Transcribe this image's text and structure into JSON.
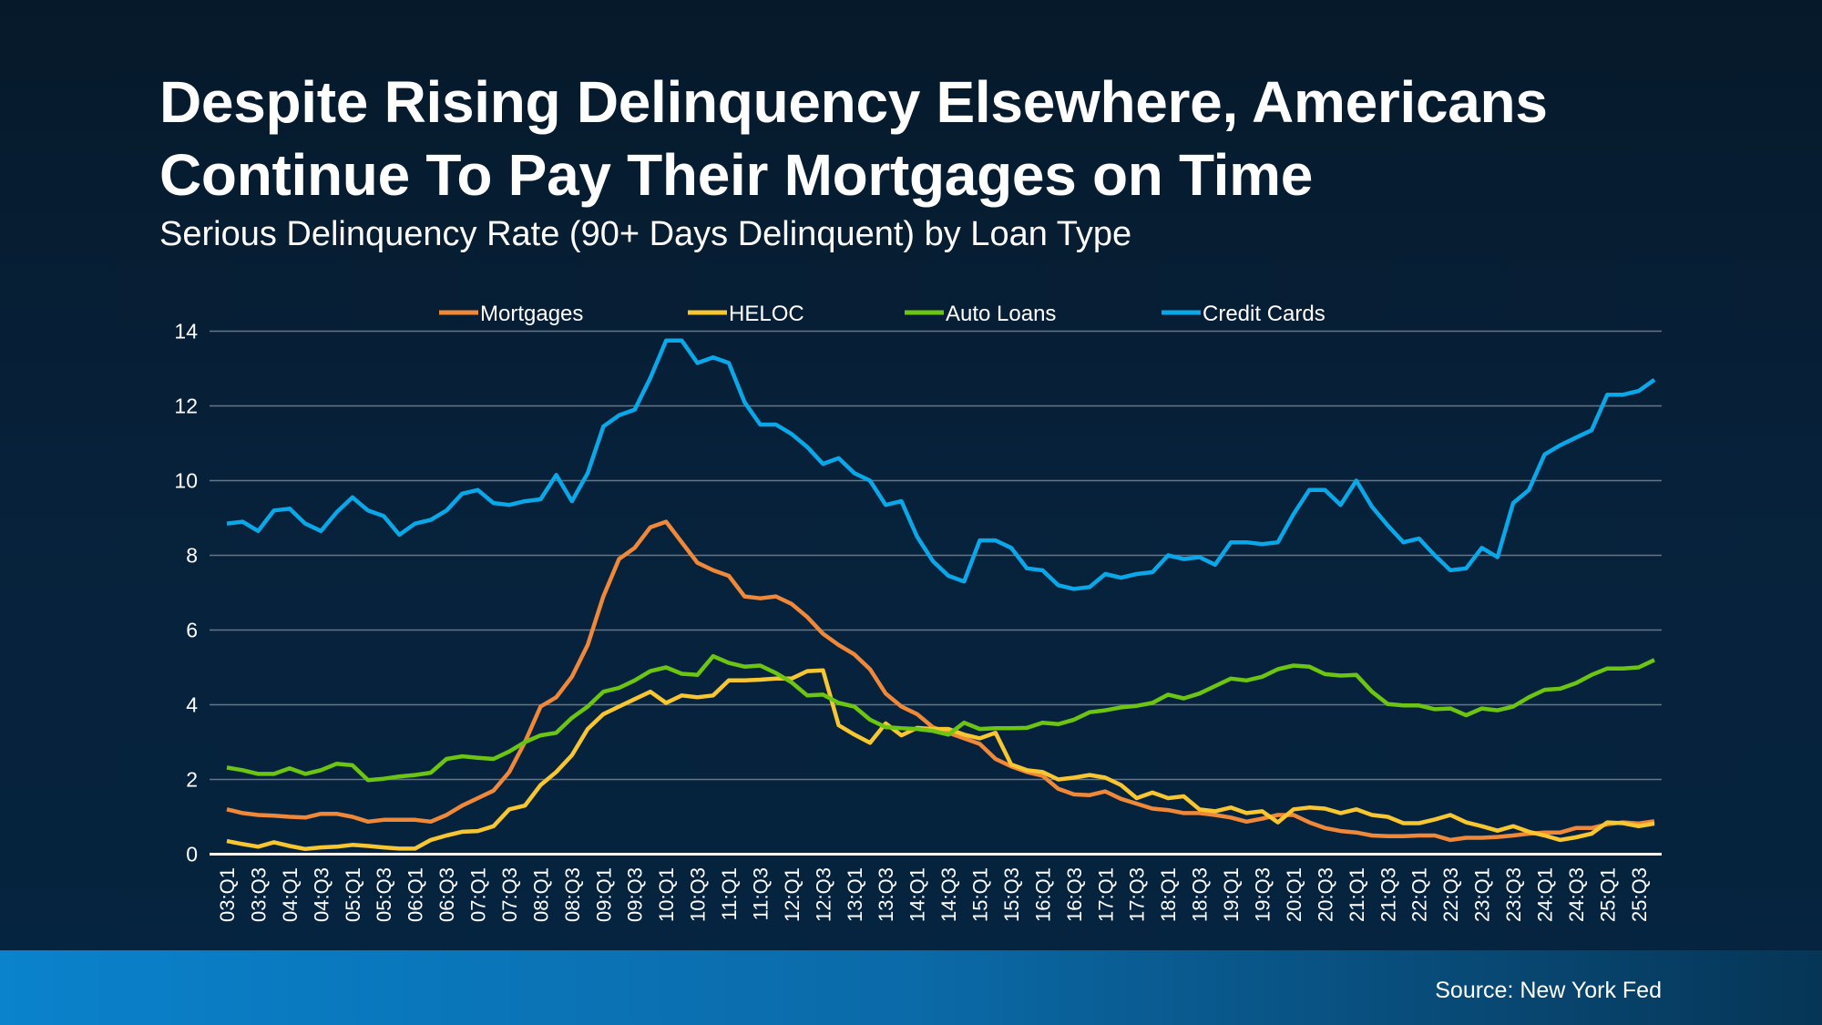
{
  "title_line1": "Despite Rising Delinquency Elsewhere, Americans",
  "title_line2": "Continue To Pay Their Mortgages on Time",
  "subtitle": "Serious Delinquency Rate (90+ Days Delinquent) by Loan Type",
  "source": "Source: New York Fed",
  "chart_data": {
    "type": "line",
    "title": "",
    "xlabel": "",
    "ylabel": "",
    "ylim": [
      0,
      14
    ],
    "yticks": [
      0,
      2,
      4,
      6,
      8,
      10,
      12,
      14
    ],
    "grid": "horizontal",
    "legend_position": "top",
    "x": [
      "03:Q1",
      "03:Q2",
      "03:Q3",
      "03:Q4",
      "04:Q1",
      "04:Q2",
      "04:Q3",
      "04:Q4",
      "05:Q1",
      "05:Q2",
      "05:Q3",
      "05:Q4",
      "06:Q1",
      "06:Q2",
      "06:Q3",
      "06:Q4",
      "07:Q1",
      "07:Q2",
      "07:Q3",
      "07:Q4",
      "08:Q1",
      "08:Q2",
      "08:Q3",
      "08:Q4",
      "09:Q1",
      "09:Q2",
      "09:Q3",
      "09:Q4",
      "10:Q1",
      "10:Q2",
      "10:Q3",
      "10:Q4",
      "11:Q1",
      "11:Q2",
      "11:Q3",
      "11:Q4",
      "12:Q1",
      "12:Q2",
      "12:Q3",
      "12:Q4",
      "13:Q1",
      "13:Q2",
      "13:Q3",
      "13:Q4",
      "14:Q1",
      "14:Q2",
      "14:Q3",
      "14:Q4",
      "15:Q1",
      "15:Q2",
      "15:Q3",
      "15:Q4",
      "16:Q1",
      "16:Q2",
      "16:Q3",
      "16:Q4",
      "17:Q1",
      "17:Q2",
      "17:Q3",
      "17:Q4",
      "18:Q1",
      "18:Q2",
      "18:Q3",
      "18:Q4",
      "19:Q1",
      "19:Q2",
      "19:Q3",
      "19:Q4",
      "20:Q1",
      "20:Q2",
      "20:Q3",
      "20:Q4",
      "21:Q1",
      "21:Q2",
      "21:Q3",
      "21:Q4",
      "22:Q1",
      "22:Q2",
      "22:Q3",
      "22:Q4",
      "23:Q1",
      "23:Q2",
      "23:Q3",
      "23:Q4",
      "24:Q1",
      "24:Q2",
      "24:Q3",
      "24:Q4",
      "25:Q1",
      "25:Q2",
      "25:Q3",
      "25:Q4"
    ],
    "xtick_labels": [
      "03:Q1",
      "03:Q3",
      "04:Q1",
      "04:Q3",
      "05:Q1",
      "05:Q3",
      "06:Q1",
      "06:Q3",
      "07:Q1",
      "07:Q3",
      "08:Q1",
      "08:Q3",
      "09:Q1",
      "09:Q3",
      "10:Q1",
      "10:Q3",
      "11:Q1",
      "11:Q3",
      "12:Q1",
      "12:Q3",
      "13:Q1",
      "13:Q3",
      "14:Q1",
      "14:Q3",
      "15:Q1",
      "15:Q3",
      "16:Q1",
      "16:Q3",
      "17:Q1",
      "17:Q3",
      "18:Q1",
      "18:Q3",
      "19:Q1",
      "19:Q3",
      "20:Q1",
      "20:Q3",
      "21:Q1",
      "21:Q3",
      "22:Q1",
      "22:Q3",
      "23:Q1",
      "23:Q3",
      "24:Q1",
      "24:Q3",
      "25:Q1",
      "25:Q3"
    ],
    "series": [
      {
        "name": "Mortgages",
        "color": "#f0883a",
        "values": [
          1.2,
          1.1,
          1.05,
          1.03,
          1.0,
          0.98,
          1.08,
          1.08,
          1.0,
          0.87,
          0.92,
          0.92,
          0.92,
          0.87,
          1.05,
          1.3,
          1.5,
          1.7,
          2.2,
          3.0,
          3.95,
          4.2,
          4.75,
          5.6,
          6.9,
          7.9,
          8.2,
          8.75,
          8.9,
          8.35,
          7.8,
          7.6,
          7.45,
          6.9,
          6.85,
          6.9,
          6.7,
          6.35,
          5.9,
          5.6,
          5.35,
          4.95,
          4.3,
          3.95,
          3.75,
          3.4,
          3.25,
          3.1,
          2.95,
          2.55,
          2.35,
          2.2,
          2.1,
          1.75,
          1.6,
          1.58,
          1.68,
          1.48,
          1.35,
          1.22,
          1.18,
          1.1,
          1.1,
          1.05,
          0.98,
          0.87,
          0.95,
          1.05,
          1.05,
          0.85,
          0.7,
          0.62,
          0.58,
          0.5,
          0.48,
          0.48,
          0.5,
          0.5,
          0.38,
          0.44,
          0.44,
          0.46,
          0.5,
          0.55,
          0.58,
          0.58,
          0.7,
          0.7,
          0.8,
          0.85,
          0.82,
          0.88
        ]
      },
      {
        "name": "HELOC",
        "color": "#f8c630",
        "values": [
          0.35,
          0.27,
          0.2,
          0.32,
          0.22,
          0.14,
          0.18,
          0.2,
          0.25,
          0.22,
          0.18,
          0.15,
          0.15,
          0.38,
          0.5,
          0.6,
          0.62,
          0.75,
          1.2,
          1.3,
          1.85,
          2.2,
          2.65,
          3.35,
          3.75,
          3.95,
          4.15,
          4.35,
          4.05,
          4.25,
          4.2,
          4.25,
          4.65,
          4.65,
          4.67,
          4.7,
          4.7,
          4.9,
          4.92,
          3.45,
          3.2,
          2.98,
          3.5,
          3.18,
          3.38,
          3.35,
          3.35,
          3.2,
          3.1,
          3.25,
          2.4,
          2.25,
          2.2,
          2.0,
          2.05,
          2.12,
          2.05,
          1.85,
          1.5,
          1.65,
          1.5,
          1.55,
          1.2,
          1.15,
          1.25,
          1.1,
          1.15,
          0.85,
          1.2,
          1.25,
          1.22,
          1.1,
          1.2,
          1.05,
          1.0,
          0.83,
          0.83,
          0.93,
          1.05,
          0.85,
          0.75,
          0.63,
          0.75,
          0.6,
          0.5,
          0.38,
          0.45,
          0.55,
          0.85,
          0.83,
          0.75,
          0.82
        ]
      },
      {
        "name": "Auto Loans",
        "color": "#6cc512",
        "values": [
          2.32,
          2.25,
          2.15,
          2.15,
          2.3,
          2.15,
          2.25,
          2.42,
          2.38,
          1.98,
          2.02,
          2.08,
          2.12,
          2.18,
          2.55,
          2.62,
          2.58,
          2.55,
          2.75,
          3.0,
          3.18,
          3.25,
          3.65,
          3.95,
          4.35,
          4.45,
          4.65,
          4.9,
          5.0,
          4.83,
          4.8,
          5.3,
          5.12,
          5.02,
          5.05,
          4.85,
          4.6,
          4.25,
          4.27,
          4.05,
          3.95,
          3.6,
          3.4,
          3.37,
          3.35,
          3.3,
          3.2,
          3.52,
          3.35,
          3.37,
          3.37,
          3.38,
          3.52,
          3.48,
          3.6,
          3.8,
          3.85,
          3.93,
          3.97,
          4.05,
          4.27,
          4.17,
          4.3,
          4.5,
          4.7,
          4.65,
          4.75,
          4.95,
          5.05,
          5.02,
          4.82,
          4.78,
          4.8,
          4.35,
          4.02,
          3.98,
          3.98,
          3.88,
          3.9,
          3.72,
          3.9,
          3.85,
          3.95,
          4.2,
          4.4,
          4.43,
          4.58,
          4.8,
          4.97,
          4.97,
          5.0,
          5.2
        ]
      },
      {
        "name": "Credit Cards",
        "color": "#0aa8e8",
        "values": [
          8.85,
          8.9,
          8.65,
          9.2,
          9.25,
          8.85,
          8.65,
          9.15,
          9.55,
          9.2,
          9.05,
          8.55,
          8.85,
          8.95,
          9.2,
          9.65,
          9.75,
          9.4,
          9.35,
          9.45,
          9.5,
          10.15,
          9.45,
          10.2,
          11.45,
          11.75,
          11.9,
          12.75,
          13.75,
          13.75,
          13.15,
          13.3,
          13.15,
          12.1,
          11.5,
          11.5,
          11.25,
          10.9,
          10.45,
          10.6,
          10.2,
          10.0,
          9.35,
          9.45,
          8.5,
          7.85,
          7.45,
          7.3,
          8.4,
          8.4,
          8.2,
          7.65,
          7.6,
          7.2,
          7.1,
          7.15,
          7.5,
          7.4,
          7.5,
          7.55,
          8.0,
          7.9,
          7.95,
          7.75,
          8.35,
          8.35,
          8.3,
          8.35,
          9.1,
          9.75,
          9.75,
          9.35,
          10.0,
          9.3,
          8.8,
          8.35,
          8.45,
          8.0,
          7.6,
          7.65,
          8.2,
          7.95,
          9.4,
          9.75,
          10.7,
          10.95,
          11.15,
          11.35,
          12.3,
          12.3,
          12.4,
          12.7
        ]
      }
    ]
  }
}
